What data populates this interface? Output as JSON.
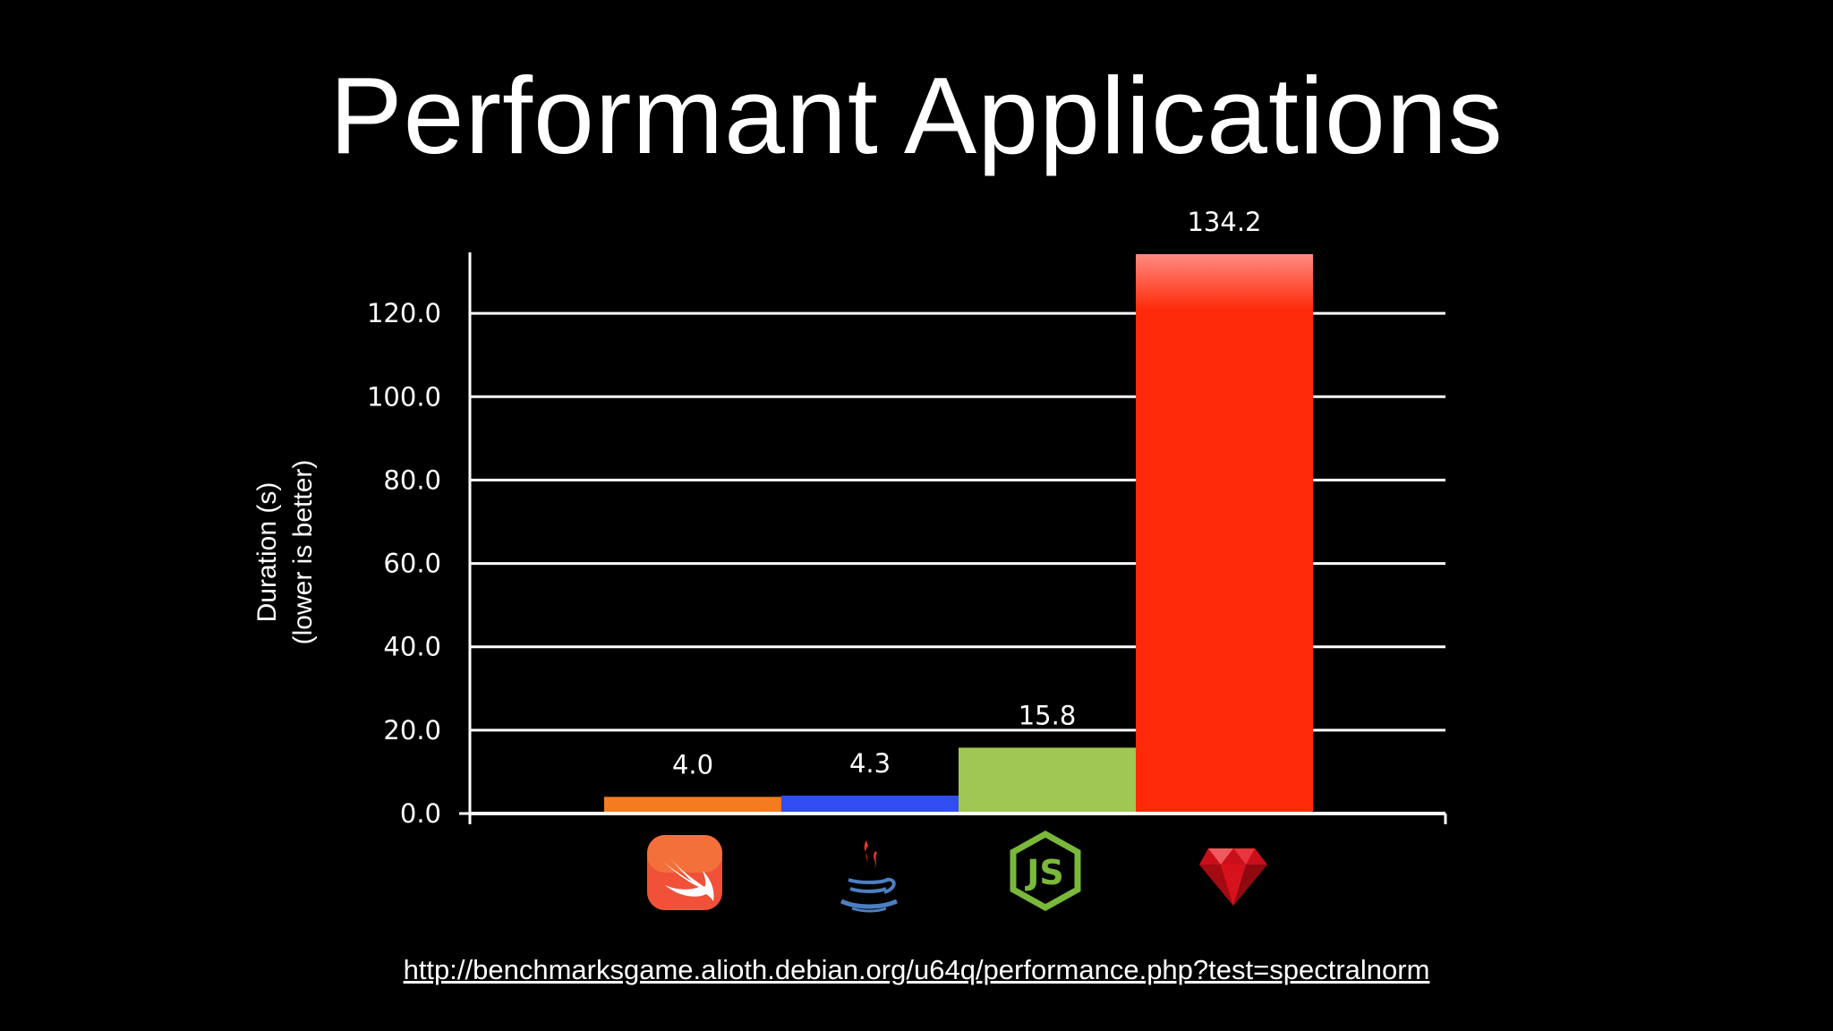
{
  "slide": {
    "title": "Performant Applications",
    "source_url": "http://benchmarksgame.alioth.debian.org/u64q/performance.php?test=spectralnorm"
  },
  "chart_data": {
    "type": "bar",
    "title": "",
    "xlabel": "",
    "ylabel": "Duration (s)",
    "ylabel_note": "(lower is better)",
    "ylim": [
      0,
      134.2
    ],
    "yticks": [
      "0.0",
      "20.0",
      "40.0",
      "60.0",
      "80.0",
      "100.0",
      "120.0"
    ],
    "ytick_values": [
      0,
      20,
      40,
      60,
      80,
      100,
      120
    ],
    "grid": true,
    "categories": [
      "swift-logo-icon",
      "java-logo-icon",
      "nodejs-logo-icon",
      "ruby-logo-icon"
    ],
    "values": [
      4.0,
      4.3,
      15.8,
      134.2
    ],
    "value_labels": [
      "4.0",
      "4.3",
      "15.8",
      "134.2"
    ],
    "bar_colors": [
      "#f47b20",
      "#2f4df0",
      "#a0c654",
      "#ff2a0a"
    ]
  }
}
